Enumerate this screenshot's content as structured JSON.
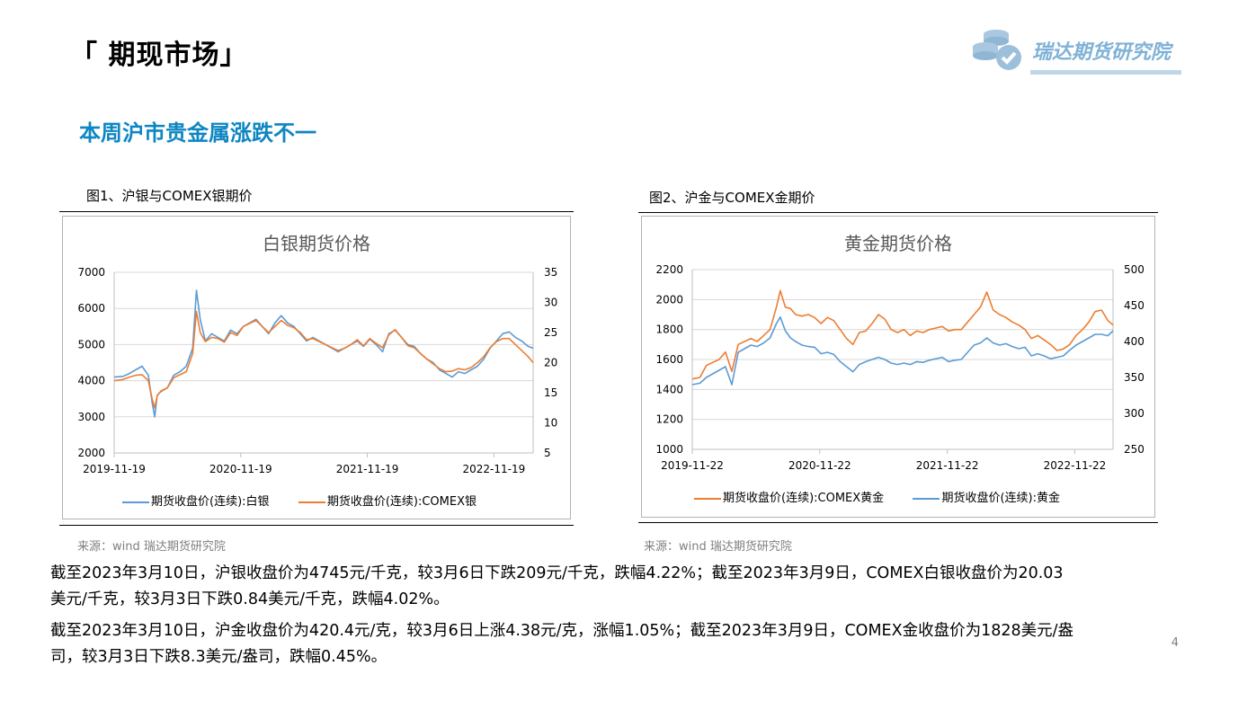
{
  "header": {
    "section_title": "「 期现市场」",
    "subtitle": "本周沪市贵金属涨跌不一",
    "logo_text": "瑞达期货研究院"
  },
  "figures": [
    {
      "caption": "图1、沪银与COMEX银期价",
      "chart_title": "白银期货价格",
      "legend": [
        "期货收盘价(连续):白银",
        "期货收盘价(连续):COMEX银"
      ],
      "source": "来源：wind   瑞达期货研究院"
    },
    {
      "caption": "图2、沪金与COMEX金期价",
      "chart_title": "黄金期货价格",
      "legend": [
        "期货收盘价(连续):COMEX黄金",
        "期货收盘价(连续):黄金"
      ],
      "source": "来源：wind   瑞达期货研究院"
    }
  ],
  "colors": {
    "blue": "#5b9bd5",
    "orange": "#ed7d31",
    "subtitle": "#0e86c2"
  },
  "paragraphs": [
    "截至2023年3月10日，沪银收盘价为4745元/千克，较3月6日下跌209元/千克，跌幅4.22%；截至2023年3月9日，COMEX白银收盘价为20.03美元/千克，较3月3日下跌0.84美元/千克，跌幅4.02%。",
    "截至2023年3月10日，沪金收盘价为420.4元/克，较3月6日上涨4.38元/克，涨幅1.05%；截至2023年3月9日，COMEX金收盘价为1828美元/盎司，较3月3日下跌8.3美元/盎司，跌幅0.45%。"
  ],
  "page_number": "4",
  "chart_data": [
    {
      "type": "line",
      "title": "白银期货价格",
      "x_ticks": [
        "2019-11-19",
        "2020-11-19",
        "2021-11-19",
        "2022-11-19"
      ],
      "y_left_ticks": [
        2000,
        3000,
        4000,
        5000,
        6000,
        7000
      ],
      "y_right_ticks": [
        5,
        10,
        15,
        20,
        25,
        30,
        35
      ],
      "ylim_left": [
        2000,
        7000
      ],
      "ylim_right": [
        5,
        35
      ],
      "x_domain_years": [
        2019.88,
        2023.19
      ],
      "grid": true,
      "legend_position": "bottom",
      "series": [
        {
          "name": "期货收盘价(连续):白银",
          "axis": "left",
          "color": "#5b9bd5",
          "x": [
            2019.88,
            2019.95,
            2020.0,
            2020.05,
            2020.1,
            2020.15,
            2020.18,
            2020.2,
            2020.22,
            2020.25,
            2020.3,
            2020.35,
            2020.4,
            2020.45,
            2020.5,
            2020.53,
            2020.56,
            2020.6,
            2020.65,
            2020.7,
            2020.75,
            2020.8,
            2020.85,
            2020.9,
            2020.95,
            2021.0,
            2021.05,
            2021.1,
            2021.15,
            2021.2,
            2021.25,
            2021.3,
            2021.35,
            2021.4,
            2021.45,
            2021.5,
            2021.55,
            2021.6,
            2021.65,
            2021.7,
            2021.75,
            2021.8,
            2021.85,
            2021.9,
            2021.95,
            2022.0,
            2022.05,
            2022.1,
            2022.15,
            2022.2,
            2022.25,
            2022.3,
            2022.35,
            2022.4,
            2022.45,
            2022.5,
            2022.55,
            2022.6,
            2022.65,
            2022.7,
            2022.75,
            2022.8,
            2022.85,
            2022.9,
            2022.95,
            2023.0,
            2023.05,
            2023.1,
            2023.15,
            2023.19
          ],
          "values": [
            4100,
            4120,
            4200,
            4300,
            4400,
            4150,
            3400,
            3000,
            3600,
            3700,
            3800,
            4150,
            4250,
            4400,
            4900,
            6500,
            5700,
            5100,
            5300,
            5200,
            5100,
            5400,
            5300,
            5500,
            5600,
            5700,
            5500,
            5300,
            5600,
            5800,
            5600,
            5500,
            5300,
            5100,
            5200,
            5100,
            5000,
            4900,
            4800,
            4900,
            5000,
            5100,
            4950,
            5150,
            5000,
            4800,
            5300,
            5400,
            5200,
            5000,
            4950,
            4750,
            4600,
            4500,
            4300,
            4200,
            4100,
            4250,
            4200,
            4300,
            4400,
            4600,
            4900,
            5100,
            5300,
            5350,
            5200,
            5100,
            4950,
            4900
          ]
        },
        {
          "name": "期货收盘价(连续):COMEX银",
          "axis": "right",
          "color": "#ed7d31",
          "x": [
            2019.88,
            2019.95,
            2020.0,
            2020.05,
            2020.1,
            2020.15,
            2020.18,
            2020.2,
            2020.22,
            2020.25,
            2020.3,
            2020.35,
            2020.4,
            2020.45,
            2020.5,
            2020.53,
            2020.56,
            2020.6,
            2020.65,
            2020.7,
            2020.75,
            2020.8,
            2020.85,
            2020.9,
            2020.95,
            2021.0,
            2021.05,
            2021.1,
            2021.15,
            2021.2,
            2021.25,
            2021.3,
            2021.35,
            2021.4,
            2021.45,
            2021.5,
            2021.55,
            2021.6,
            2021.65,
            2021.7,
            2021.75,
            2021.8,
            2021.85,
            2021.9,
            2021.95,
            2022.0,
            2022.05,
            2022.1,
            2022.15,
            2022.2,
            2022.25,
            2022.3,
            2022.35,
            2022.4,
            2022.45,
            2022.5,
            2022.55,
            2022.6,
            2022.65,
            2022.7,
            2022.75,
            2022.8,
            2022.85,
            2022.9,
            2022.95,
            2023.0,
            2023.05,
            2023.1,
            2023.15,
            2023.19
          ],
          "values": [
            17.0,
            17.2,
            17.6,
            17.9,
            18.0,
            17.0,
            14.0,
            12.5,
            14.5,
            15.3,
            15.8,
            17.5,
            18.0,
            18.5,
            21.5,
            28.5,
            25.0,
            23.5,
            24.2,
            24.0,
            23.4,
            25.0,
            24.5,
            26.0,
            26.5,
            27.0,
            26.0,
            25.0,
            26.0,
            27.0,
            26.2,
            25.8,
            25.0,
            23.8,
            24.0,
            23.5,
            23.0,
            22.5,
            22.0,
            22.4,
            23.0,
            23.8,
            22.8,
            24.0,
            23.2,
            22.5,
            24.6,
            25.5,
            24.2,
            22.8,
            22.5,
            21.5,
            20.6,
            19.8,
            19.0,
            18.5,
            18.6,
            19.0,
            18.8,
            19.2,
            20.0,
            21.0,
            22.5,
            23.5,
            24.0,
            24.0,
            23.0,
            22.0,
            21.0,
            20.0
          ]
        }
      ]
    },
    {
      "type": "line",
      "title": "黄金期货价格",
      "x_ticks": [
        "2019-11-22",
        "2020-11-22",
        "2021-11-22",
        "2022-11-22"
      ],
      "y_left_ticks": [
        1000,
        1200,
        1400,
        1600,
        1800,
        2000,
        2200
      ],
      "y_right_ticks": [
        250,
        300,
        350,
        400,
        450,
        500
      ],
      "ylim_left": [
        1000,
        2200
      ],
      "ylim_right": [
        250,
        500
      ],
      "x_domain_years": [
        2019.89,
        2023.19
      ],
      "grid": true,
      "legend_position": "bottom",
      "series": [
        {
          "name": "期货收盘价(连续):COMEX黄金",
          "axis": "left",
          "color": "#ed7d31",
          "x": [
            2019.89,
            2019.95,
            2020.0,
            2020.05,
            2020.1,
            2020.15,
            2020.2,
            2020.25,
            2020.3,
            2020.35,
            2020.4,
            2020.45,
            2020.5,
            2020.55,
            2020.58,
            2020.62,
            2020.66,
            2020.7,
            2020.75,
            2020.8,
            2020.85,
            2020.9,
            2020.95,
            2021.0,
            2021.05,
            2021.1,
            2021.15,
            2021.2,
            2021.25,
            2021.3,
            2021.35,
            2021.4,
            2021.45,
            2021.5,
            2021.55,
            2021.6,
            2021.65,
            2021.7,
            2021.75,
            2021.8,
            2021.85,
            2021.9,
            2021.95,
            2022.0,
            2022.05,
            2022.1,
            2022.15,
            2022.2,
            2022.25,
            2022.3,
            2022.35,
            2022.4,
            2022.45,
            2022.5,
            2022.55,
            2022.6,
            2022.65,
            2022.7,
            2022.75,
            2022.8,
            2022.85,
            2022.9,
            2022.95,
            2023.0,
            2023.05,
            2023.1,
            2023.15,
            2023.19
          ],
          "values": [
            1470,
            1480,
            1560,
            1580,
            1600,
            1650,
            1520,
            1700,
            1720,
            1740,
            1720,
            1760,
            1800,
            1950,
            2060,
            1950,
            1940,
            1900,
            1890,
            1900,
            1880,
            1840,
            1880,
            1860,
            1800,
            1740,
            1700,
            1780,
            1790,
            1840,
            1900,
            1870,
            1800,
            1780,
            1800,
            1760,
            1790,
            1780,
            1800,
            1810,
            1820,
            1790,
            1800,
            1800,
            1850,
            1900,
            1950,
            2050,
            1930,
            1900,
            1880,
            1850,
            1830,
            1800,
            1740,
            1760,
            1730,
            1700,
            1660,
            1670,
            1700,
            1760,
            1800,
            1850,
            1920,
            1930,
            1860,
            1830
          ]
        },
        {
          "name": "期货收盘价(连续):黄金",
          "axis": "right",
          "color": "#5b9bd5",
          "x": [
            2019.89,
            2019.95,
            2020.0,
            2020.05,
            2020.1,
            2020.15,
            2020.2,
            2020.25,
            2020.3,
            2020.35,
            2020.4,
            2020.45,
            2020.5,
            2020.55,
            2020.58,
            2020.62,
            2020.66,
            2020.7,
            2020.75,
            2020.8,
            2020.85,
            2020.9,
            2020.95,
            2021.0,
            2021.05,
            2021.1,
            2021.15,
            2021.2,
            2021.25,
            2021.3,
            2021.35,
            2021.4,
            2021.45,
            2021.5,
            2021.55,
            2021.6,
            2021.65,
            2021.7,
            2021.75,
            2021.8,
            2021.85,
            2021.9,
            2021.95,
            2022.0,
            2022.05,
            2022.1,
            2022.15,
            2022.2,
            2022.25,
            2022.3,
            2022.35,
            2022.4,
            2022.45,
            2022.5,
            2022.55,
            2022.6,
            2022.65,
            2022.7,
            2022.75,
            2022.8,
            2022.85,
            2022.9,
            2022.95,
            2023.0,
            2023.05,
            2023.1,
            2023.15,
            2023.19
          ],
          "values": [
            340,
            342,
            350,
            355,
            360,
            365,
            340,
            385,
            390,
            395,
            393,
            398,
            405,
            425,
            434,
            415,
            405,
            400,
            395,
            393,
            392,
            383,
            385,
            382,
            372,
            365,
            358,
            368,
            372,
            375,
            378,
            375,
            370,
            368,
            370,
            368,
            372,
            371,
            374,
            376,
            378,
            372,
            374,
            375,
            385,
            395,
            398,
            405,
            398,
            395,
            397,
            393,
            390,
            392,
            380,
            383,
            380,
            376,
            378,
            380,
            388,
            395,
            400,
            405,
            410,
            410,
            408,
            415
          ]
        }
      ]
    }
  ]
}
